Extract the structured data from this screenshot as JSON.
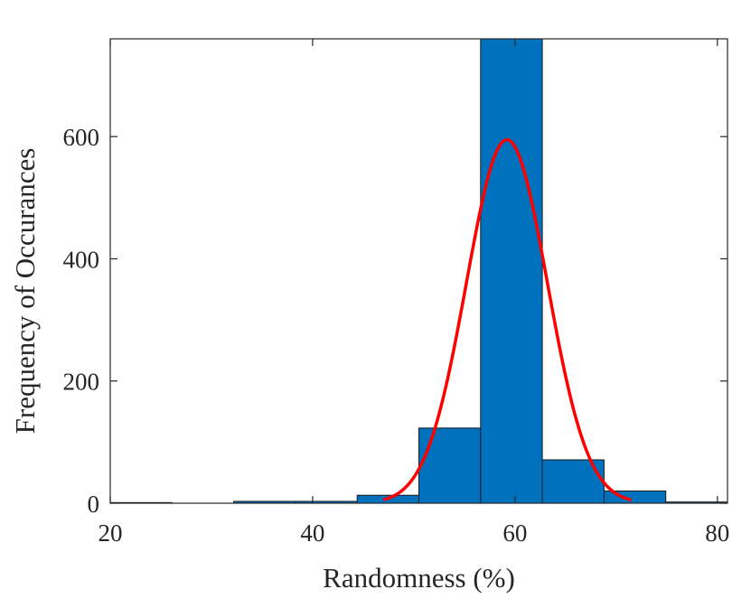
{
  "chart_data": {
    "type": "bar",
    "subtype": "histogram-with-fit",
    "title": "",
    "xlabel": "Randomness (%)",
    "ylabel": "Frequency of Occurances",
    "xlim": [
      20,
      81
    ],
    "ylim": [
      0,
      760
    ],
    "grid": false,
    "legend": "none",
    "xticks": [
      20,
      40,
      60,
      80
    ],
    "yticks": [
      0,
      200,
      400,
      600
    ],
    "bar_color": "#0072BD",
    "bar_edge_color": "#1a1a1a",
    "fit_color": "#FF0000",
    "bins": [
      {
        "start": 20.0,
        "end": 26.1,
        "count": 1
      },
      {
        "start": 26.1,
        "end": 32.2,
        "count": 0
      },
      {
        "start": 32.2,
        "end": 38.3,
        "count": 3
      },
      {
        "start": 38.3,
        "end": 44.4,
        "count": 3
      },
      {
        "start": 44.4,
        "end": 50.5,
        "count": 13
      },
      {
        "start": 50.5,
        "end": 56.6,
        "count": 123
      },
      {
        "start": 56.6,
        "end": 62.7,
        "count": 760
      },
      {
        "start": 62.7,
        "end": 68.8,
        "count": 71
      },
      {
        "start": 68.8,
        "end": 74.9,
        "count": 20
      },
      {
        "start": 74.9,
        "end": 81.0,
        "count": 2
      }
    ],
    "fit": {
      "distribution": "normal",
      "mean": 59.2,
      "sigma": 4.0,
      "peak": 595,
      "x_range": [
        47,
        71.5
      ]
    }
  }
}
